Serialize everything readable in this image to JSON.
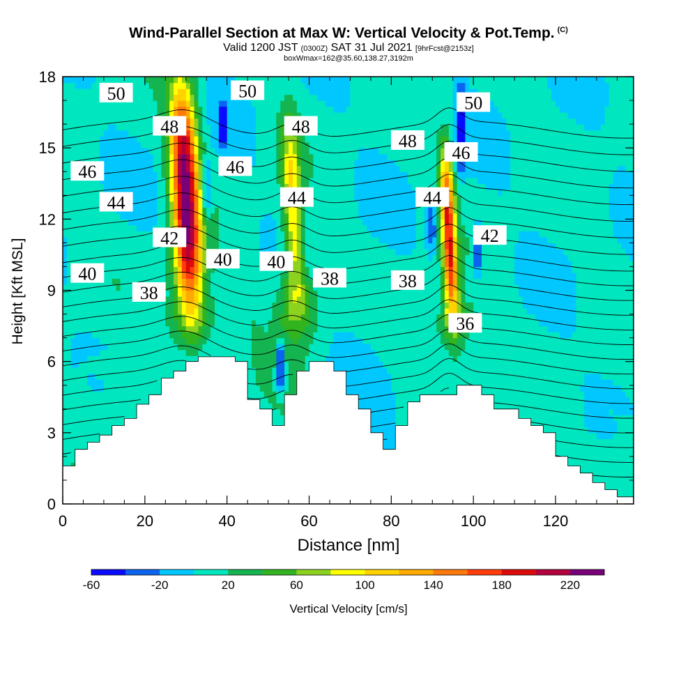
{
  "title": {
    "main": "Wind-Parallel Section at Max W: Vertical Velocity & Pot.Temp.",
    "copyright": "(C)",
    "valid_prefix": "Valid 1200 JST",
    "valid_utc": "(0300Z)",
    "valid_date": "SAT 31 Jul 2021",
    "forecast": "[9hrFcst@2153z]",
    "box_info": "boxWmax=162@35.60,138.27,3192m"
  },
  "chart_data": {
    "type": "heatmap",
    "xlabel": "Distance [nm]",
    "ylabel": "Height [Kft MSL]",
    "xlim": [
      0,
      139
    ],
    "ylim": [
      0,
      18
    ],
    "x_ticks": [
      0,
      20,
      40,
      60,
      80,
      100,
      120
    ],
    "y_ticks": [
      0,
      3,
      6,
      9,
      12,
      15,
      18
    ],
    "colorbar": {
      "title": "Vertical Velocity [cm/s]",
      "labels": [
        "-60",
        "-20",
        "20",
        "60",
        "100",
        "140",
        "180",
        "220"
      ],
      "levels": [
        -60,
        -40,
        -20,
        0,
        20,
        40,
        60,
        80,
        100,
        120,
        140,
        160,
        180,
        200,
        220,
        240
      ],
      "colors": [
        "#0a0aff",
        "#0a64f0",
        "#00c8ff",
        "#00e6be",
        "#14b450",
        "#32b41e",
        "#8cd21e",
        "#ffff00",
        "#ffd200",
        "#ffaa00",
        "#ff780a",
        "#ff3c0a",
        "#dc0a0a",
        "#b4003c",
        "#780078"
      ]
    },
    "updrafts": [
      {
        "x": 30,
        "y_base": 7.8,
        "y_top": 18,
        "width_nm": 10,
        "max_w": 240
      },
      {
        "x": 56,
        "y_base": 8.4,
        "y_top": 16.5,
        "width_nm": 7,
        "max_w": 110
      },
      {
        "x": 94,
        "y_base": 7.8,
        "y_top": 15.2,
        "width_nm": 5,
        "max_w": 190
      }
    ],
    "downdrafts": [
      {
        "x": 53,
        "y_base": 4.6,
        "y_top": 7.0,
        "min_w": -60
      },
      {
        "x": 97,
        "y_base": 14.0,
        "y_top": 17.7,
        "min_w": -60
      },
      {
        "x": 35,
        "y_base": 12.0,
        "y_top": 14.5,
        "min_w": -40
      },
      {
        "x": 101,
        "y_base": 9.5,
        "y_top": 12.0,
        "min_w": -40
      },
      {
        "x": 39,
        "y_base": 15.0,
        "y_top": 17.0,
        "min_w": -40
      },
      {
        "x": 90,
        "y_base": 10.5,
        "y_top": 13.0,
        "min_w": -30
      }
    ],
    "contour_labels": [
      {
        "text": "50",
        "x": 13,
        "y": 17.3
      },
      {
        "text": "50",
        "x": 45,
        "y": 17.4
      },
      {
        "text": "50",
        "x": 100,
        "y": 16.9
      },
      {
        "text": "48",
        "x": 26,
        "y": 15.9
      },
      {
        "text": "48",
        "x": 58,
        "y": 15.9
      },
      {
        "text": "48",
        "x": 84,
        "y": 15.3
      },
      {
        "text": "46",
        "x": 6,
        "y": 14.0
      },
      {
        "text": "46",
        "x": 42,
        "y": 14.2
      },
      {
        "text": "46",
        "x": 97,
        "y": 14.8
      },
      {
        "text": "44",
        "x": 13,
        "y": 12.7
      },
      {
        "text": "44",
        "x": 57,
        "y": 12.9
      },
      {
        "text": "44",
        "x": 90,
        "y": 12.9
      },
      {
        "text": "42",
        "x": 26,
        "y": 11.2
      },
      {
        "text": "42",
        "x": 104,
        "y": 11.3
      },
      {
        "text": "40",
        "x": 6,
        "y": 9.7
      },
      {
        "text": "40",
        "x": 39,
        "y": 10.3
      },
      {
        "text": "40",
        "x": 52,
        "y": 10.2
      },
      {
        "text": "38",
        "x": 21,
        "y": 8.9
      },
      {
        "text": "38",
        "x": 65,
        "y": 9.5
      },
      {
        "text": "38",
        "x": 84,
        "y": 9.4
      },
      {
        "text": "36",
        "x": 98,
        "y": 7.6
      }
    ],
    "terrain": {
      "x": [
        0,
        3,
        6,
        9,
        12,
        15,
        18,
        21,
        24,
        27,
        30,
        33,
        36,
        39,
        42,
        45,
        48,
        51,
        54,
        57,
        60,
        63,
        66,
        69,
        72,
        75,
        78,
        81,
        84,
        87,
        90,
        93,
        96,
        99,
        102,
        105,
        108,
        111,
        114,
        117,
        120,
        123,
        126,
        129,
        132,
        135,
        139
      ],
      "y": [
        1.6,
        2.3,
        2.6,
        2.9,
        3.3,
        3.6,
        4.2,
        4.6,
        5.3,
        5.6,
        6.0,
        6.2,
        6.2,
        6.2,
        6.0,
        4.4,
        4.0,
        3.3,
        4.6,
        5.6,
        6.0,
        6.0,
        5.6,
        4.6,
        4.0,
        3.0,
        2.3,
        3.3,
        4.3,
        4.6,
        4.6,
        4.6,
        5.0,
        5.0,
        4.6,
        4.0,
        4.0,
        3.6,
        3.3,
        3.0,
        2.0,
        1.6,
        1.3,
        0.9,
        0.6,
        0.3,
        0.3
      ]
    },
    "isentrope_base": {
      "theta_min": 30,
      "theta_max": 52,
      "step": 1
    }
  }
}
